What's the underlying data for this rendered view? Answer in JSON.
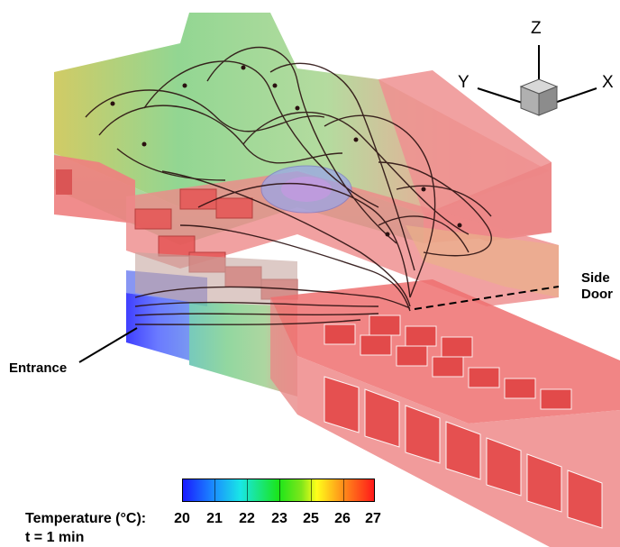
{
  "axes": {
    "z": "Z",
    "y": "Y",
    "x": "X"
  },
  "annotations": {
    "entrance": "Entrance",
    "side_door_line1": "Side",
    "side_door_line2": "Door"
  },
  "legend": {
    "title": "Temperature (°C):",
    "ticks": [
      "20",
      "21",
      "22",
      "23",
      "25",
      "26",
      "27"
    ],
    "time": "t = 1 min"
  },
  "colors": {
    "cold": "#1a1aff",
    "warm": "#ff1a1a",
    "building_fill": "#ef7f7f"
  }
}
